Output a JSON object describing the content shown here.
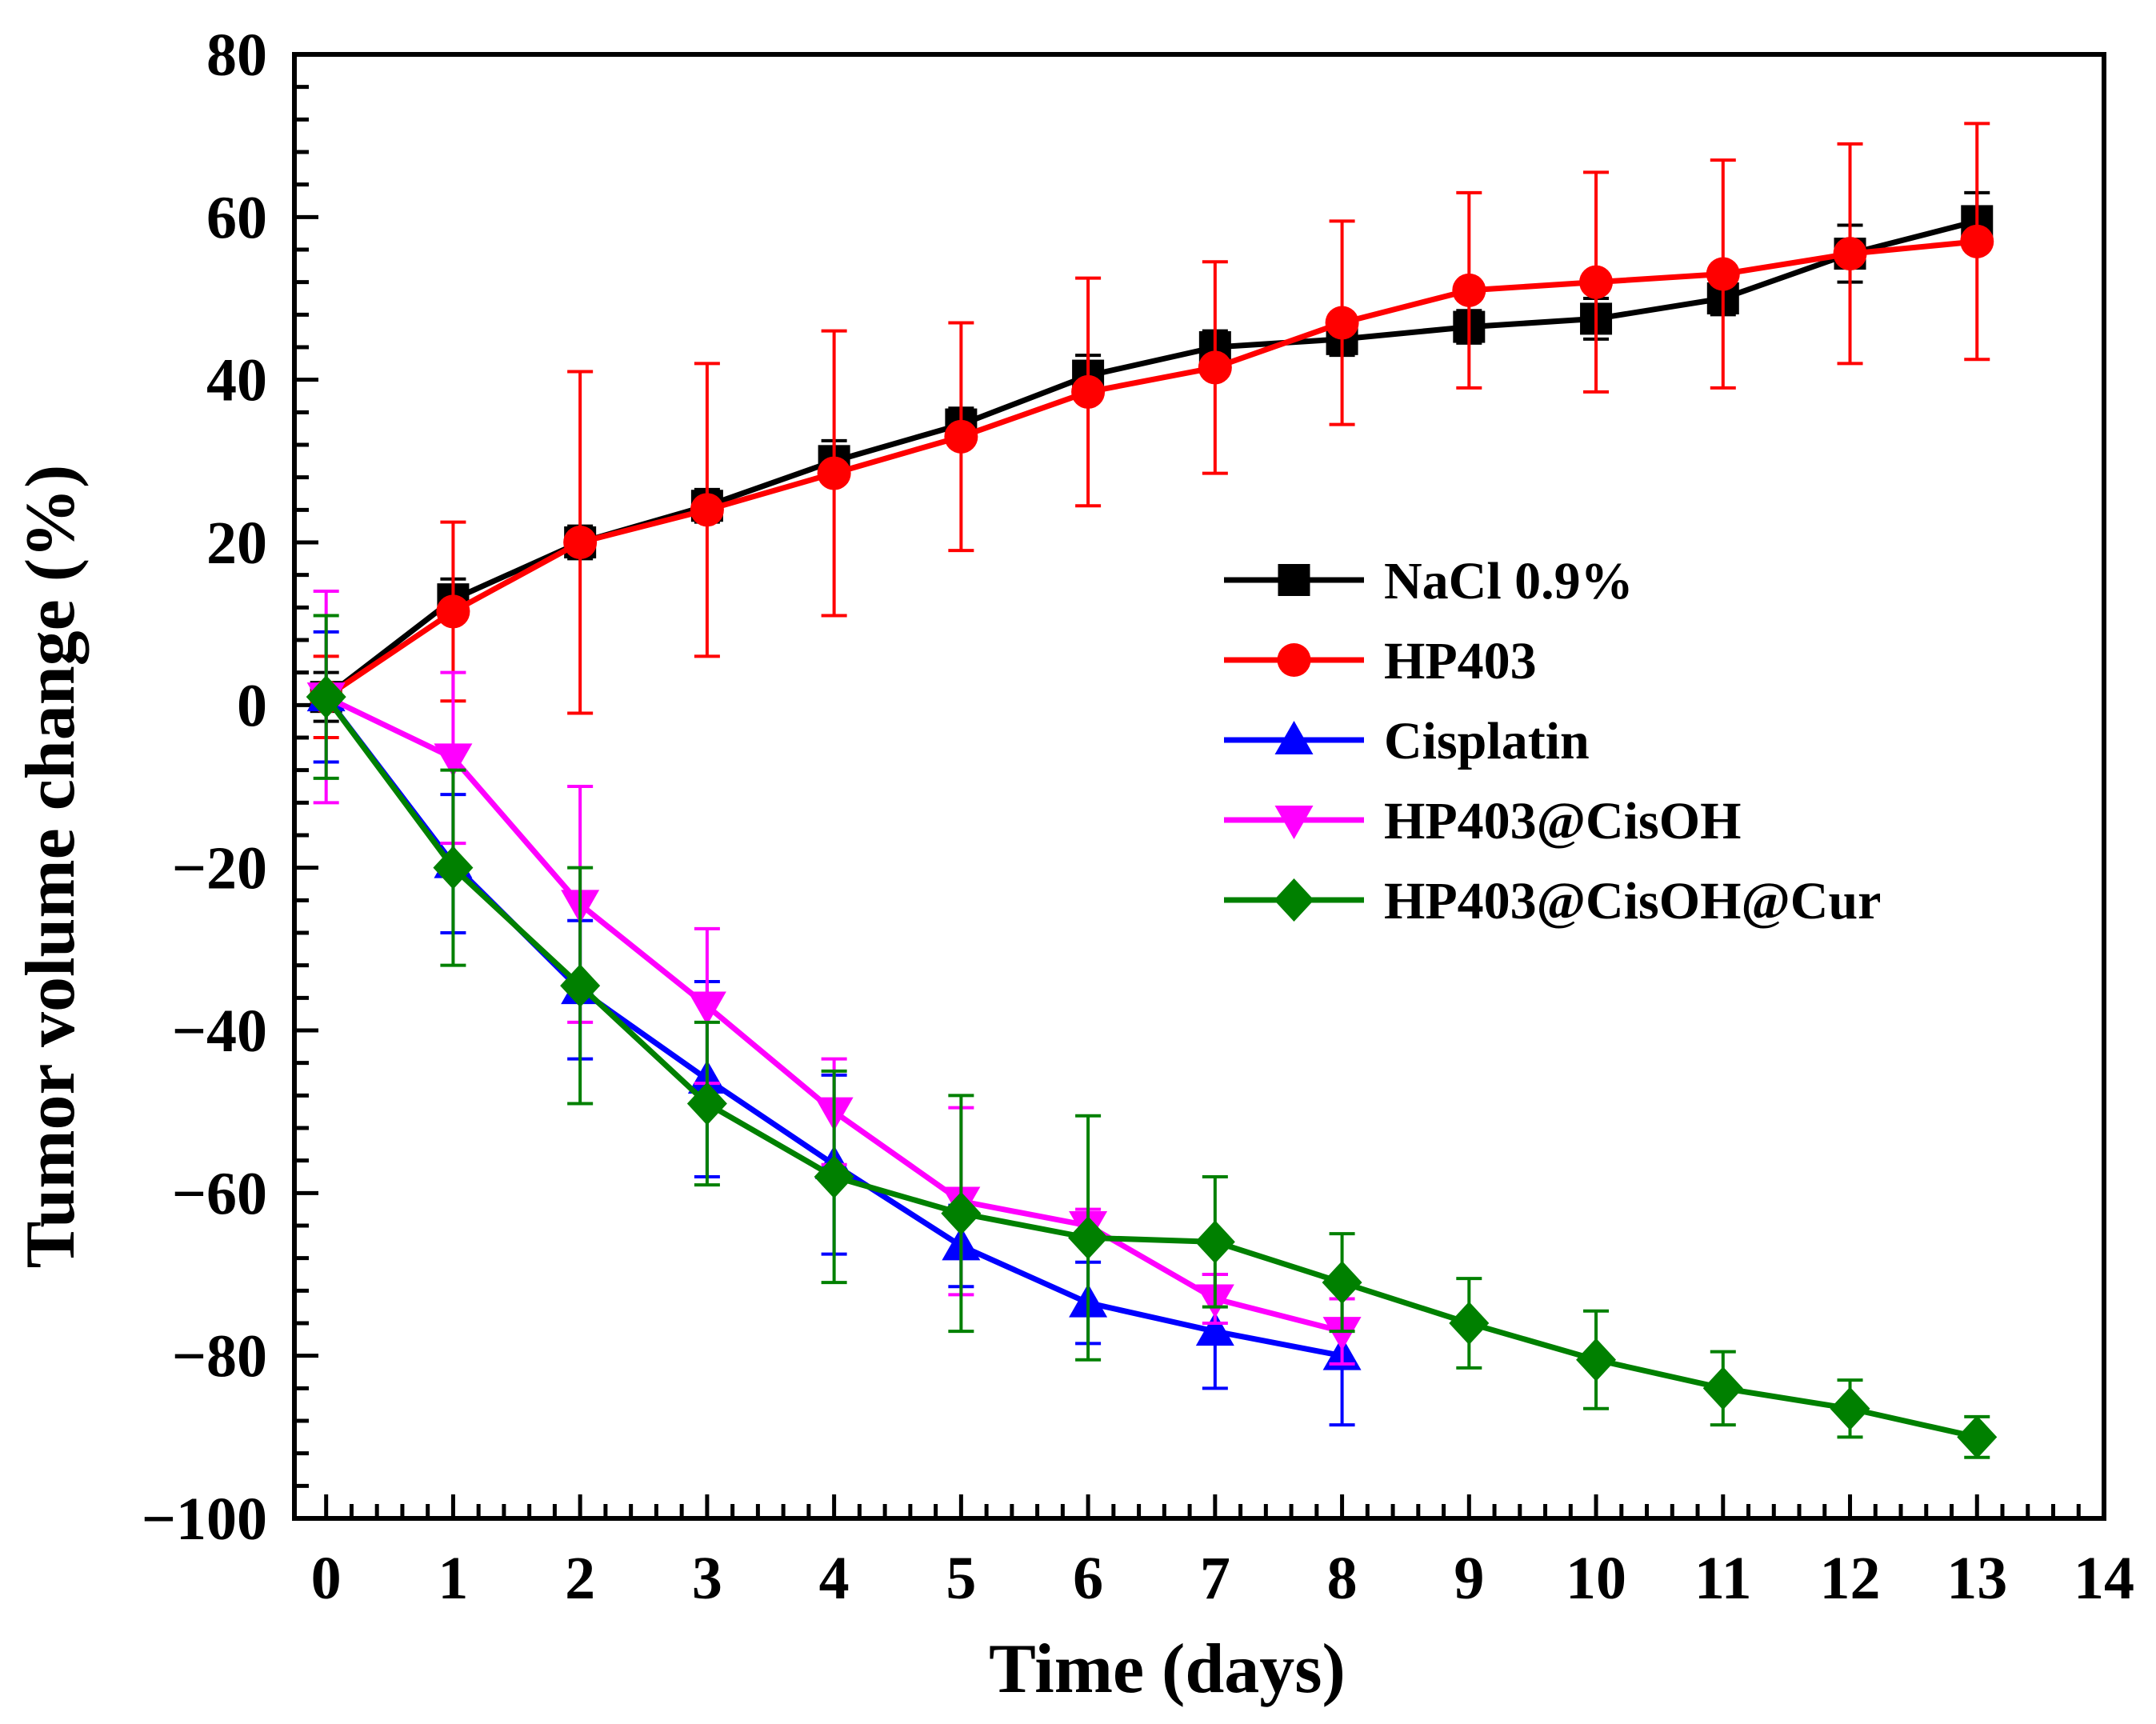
{
  "chart_data": {
    "type": "line",
    "title": "",
    "xlabel": "Time (days)",
    "ylabel": "Tumor volume change (%)",
    "xlim": [
      -0.25,
      14
    ],
    "ylim": [
      -100,
      80
    ],
    "x_ticks": [
      0,
      1,
      2,
      3,
      4,
      5,
      6,
      7,
      8,
      9,
      10,
      11,
      12,
      13,
      14
    ],
    "y_ticks": [
      -100,
      -80,
      -60,
      -40,
      -20,
      0,
      20,
      40,
      60,
      80
    ],
    "x_tick_labels": [
      "0",
      "1",
      "2",
      "3",
      "4",
      "5",
      "6",
      "7",
      "8",
      "9",
      "10",
      "11",
      "12",
      "13",
      "14"
    ],
    "y_tick_labels": [
      "−100",
      "−80",
      "−60",
      "−40",
      "−20",
      "0",
      "20",
      "40",
      "60",
      "80"
    ],
    "grid": false,
    "legend_position": "center-right",
    "series": [
      {
        "name": "NaCl 0.9%",
        "color": "#000000",
        "marker": "square",
        "x": [
          0,
          1,
          2,
          3,
          4,
          5,
          6,
          7,
          8,
          9,
          10,
          11,
          12,
          13
        ],
        "values": [
          1,
          13,
          20,
          24.5,
          30,
          34.5,
          40.5,
          44,
          45,
          46.5,
          47.5,
          50,
          55.5,
          59.5
        ],
        "errors": [
          3,
          2.5,
          2,
          2,
          2.5,
          2,
          2.5,
          2,
          2,
          2,
          2.5,
          2,
          3.5,
          3.5
        ]
      },
      {
        "name": "HP403",
        "color": "#ff0000",
        "marker": "circle",
        "x": [
          0,
          1,
          2,
          3,
          4,
          5,
          6,
          7,
          8,
          9,
          10,
          11,
          12,
          13
        ],
        "values": [
          1,
          11.5,
          20,
          24,
          28.5,
          33,
          38.5,
          41.5,
          47,
          51,
          52,
          53,
          55.5,
          57
        ],
        "errors": [
          5,
          11,
          21,
          18,
          17.5,
          14,
          14,
          13,
          12.5,
          12,
          13.5,
          14,
          13.5,
          14.5
        ]
      },
      {
        "name": "Cisplatin",
        "color": "#0000ff",
        "marker": "triangle-up",
        "x": [
          0,
          1,
          2,
          3,
          4,
          5,
          6,
          7,
          8
        ],
        "values": [
          1,
          -19.5,
          -35,
          -46,
          -56.5,
          -66.5,
          -73.5,
          -77,
          -80
        ],
        "errors": [
          8,
          8.5,
          8.5,
          12,
          11,
          5,
          5,
          7,
          8.5
        ]
      },
      {
        "name": "HP403@CisOH",
        "color": "#ff00ff",
        "marker": "triangle-down",
        "x": [
          0,
          1,
          2,
          3,
          4,
          5,
          6,
          7,
          8
        ],
        "values": [
          1,
          -6.5,
          -24.5,
          -37,
          -50,
          -61,
          -64,
          -73,
          -77
        ],
        "errors": [
          13,
          10.5,
          14.5,
          9.5,
          6.5,
          11.5,
          2,
          3,
          4
        ]
      },
      {
        "name": "HP403@CisOH@Cur",
        "color": "#008000",
        "marker": "diamond",
        "x": [
          0,
          1,
          2,
          3,
          4,
          5,
          6,
          7,
          8,
          9,
          10,
          11,
          12,
          13
        ],
        "values": [
          1,
          -20,
          -34.5,
          -49,
          -58,
          -62.5,
          -65.5,
          -66,
          -71,
          -76,
          -80.5,
          -84,
          -86.5,
          -90
        ],
        "errors": [
          10,
          12,
          14.5,
          10,
          13,
          14.5,
          15,
          8,
          6,
          5.5,
          6,
          4.5,
          3.5,
          2.5
        ]
      }
    ]
  }
}
